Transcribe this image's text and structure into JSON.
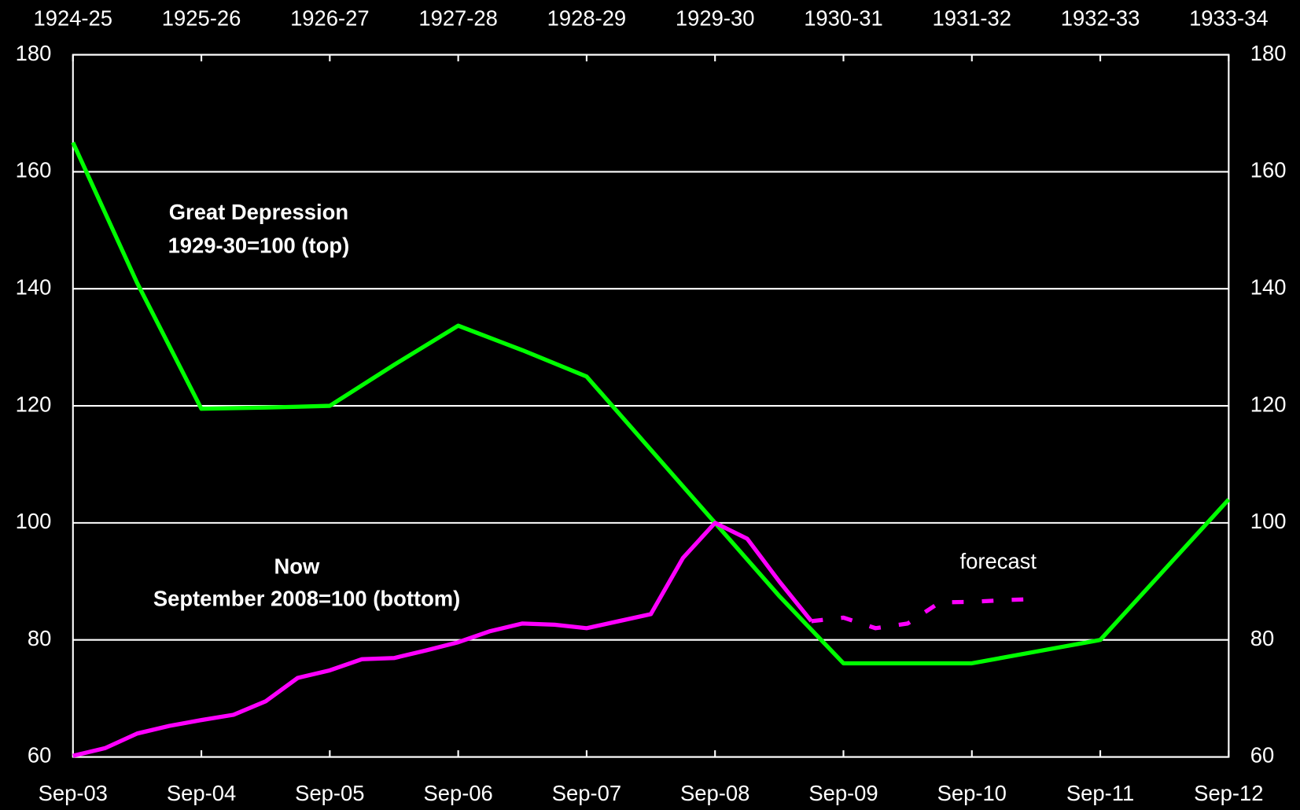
{
  "chart_data": {
    "type": "line",
    "xlim": [
      0,
      9
    ],
    "xticks": [
      {
        "value": 0,
        "label": "Sep-03"
      },
      {
        "value": 1,
        "label": "Sep-04"
      },
      {
        "value": 2,
        "label": "Sep-05"
      },
      {
        "value": 3,
        "label": "Sep-06"
      },
      {
        "value": 4,
        "label": "Sep-07"
      },
      {
        "value": 5,
        "label": "Sep-08"
      },
      {
        "value": 6,
        "label": "Sep-09"
      },
      {
        "value": 7,
        "label": "Sep-10"
      },
      {
        "value": 8,
        "label": "Sep-11"
      },
      {
        "value": 9,
        "label": "Sep-12"
      }
    ],
    "x2ticks": [
      {
        "value": 0,
        "label": "1924-25"
      },
      {
        "value": 1,
        "label": "1925-26"
      },
      {
        "value": 2,
        "label": "1926-27"
      },
      {
        "value": 3,
        "label": "1927-28"
      },
      {
        "value": 4,
        "label": "1928-29"
      },
      {
        "value": 5,
        "label": "1929-30"
      },
      {
        "value": 6,
        "label": "1930-31"
      },
      {
        "value": 7,
        "label": "1931-32"
      },
      {
        "value": 8,
        "label": "1932-33"
      },
      {
        "value": 9,
        "label": "1933-34"
      }
    ],
    "ylim": [
      60,
      180
    ],
    "yticks": [
      60,
      80,
      100,
      120,
      140,
      160,
      180
    ],
    "y2lim": [
      60,
      180
    ],
    "y2ticks": [
      60,
      80,
      100,
      120,
      140,
      160,
      180
    ],
    "grid": true,
    "series": [
      {
        "color": "#00ff00",
        "x": [
          0,
          0.5,
          1,
          1.5,
          2,
          2.5,
          3,
          3.5,
          4,
          4.5,
          5,
          5.5,
          6,
          6.5,
          7,
          7.5,
          8,
          8.5,
          9
        ],
        "values": [
          165,
          141,
          119.5,
          119.7,
          120,
          127,
          133.7,
          129.5,
          125,
          112.5,
          100,
          87.5,
          76,
          76,
          76,
          78,
          80,
          92,
          104
        ]
      },
      {
        "color": "#ff00ff",
        "x": [
          0,
          0.25,
          0.5,
          0.75,
          1,
          1.25,
          1.5,
          1.75,
          2,
          2.25,
          2.5,
          2.75,
          3,
          3.25,
          3.5,
          3.75,
          4,
          4.25,
          4.5,
          4.75,
          5,
          5.25,
          5.5,
          5.75
        ],
        "values": [
          60.2,
          61.5,
          64,
          65.3,
          66.3,
          67.2,
          69.5,
          73.5,
          74.8,
          76.7,
          76.9,
          78.2,
          79.6,
          81.5,
          82.8,
          82.6,
          82,
          83.2,
          84.4,
          94,
          100,
          97.3,
          90,
          83.2
        ]
      },
      {
        "color": "#ff00ff",
        "dashed": true,
        "x": [
          5.75,
          6,
          6.25,
          6.5,
          6.75,
          7,
          7.25,
          7.5
        ],
        "values": [
          83.2,
          83.8,
          82,
          82.8,
          86.4,
          86.5,
          86.8,
          87
        ]
      }
    ],
    "annotations": [
      {
        "text": "Great Depression",
        "color": "#00ff00"
      },
      {
        "text": "1929-30=100 (top)",
        "color": "#00ff00"
      },
      {
        "text": "Now",
        "color": "#ff00ff"
      },
      {
        "text": "September 2008=100 (bottom)",
        "color": "#ff00ff"
      },
      {
        "text": "forecast",
        "color": "#ffffff"
      }
    ]
  }
}
